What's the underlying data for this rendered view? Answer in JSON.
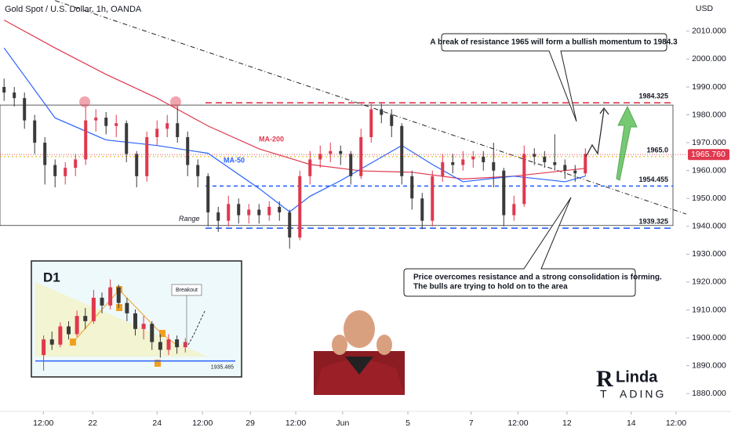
{
  "chart_data": [
    {
      "type": "candlestick",
      "title": "Gold Spot / U.S. Dollar, 1h, OANDA",
      "currency": "USD",
      "up_color": "#e0384e",
      "down_color": "#3a3a3a",
      "x": [
        0,
        1,
        2,
        3,
        4,
        5,
        6,
        7,
        8,
        9,
        10,
        11,
        12,
        13,
        14,
        15,
        16,
        17,
        18,
        19,
        20,
        21,
        22,
        23,
        24,
        25,
        26,
        27,
        28,
        29,
        30,
        31,
        32,
        33,
        34,
        35,
        36,
        37,
        38,
        39,
        40,
        41,
        42,
        43,
        44,
        45,
        46,
        47,
        48,
        49,
        50,
        51,
        52,
        53,
        54,
        55,
        56,
        57
      ],
      "open": [
        1990,
        1988,
        1986,
        1978,
        1970,
        1962,
        1958,
        1961,
        1964,
        1978,
        1979,
        1976,
        1977,
        1966,
        1958,
        1972,
        1975,
        1977,
        1972,
        1962,
        1958,
        1945,
        1942,
        1948,
        1944,
        1946,
        1944,
        1947,
        1945,
        1936,
        1958,
        1964,
        1966,
        1967,
        1966,
        1958,
        1972,
        1982,
        1980,
        1976,
        1958,
        1950,
        1942,
        1958,
        1963,
        1962,
        1964,
        1965,
        1963,
        1960,
        1944,
        1948,
        1966,
        1965,
        1963,
        1962,
        1960,
        1959
      ],
      "high": [
        1993,
        1990,
        1988,
        1980,
        1972,
        1964,
        1963,
        1966,
        1983,
        1982,
        1981,
        1980,
        1978,
        1967,
        1974,
        1978,
        1980,
        1983,
        1974,
        1964,
        1959,
        1947,
        1951,
        1950,
        1948,
        1948,
        1949,
        1949,
        1946,
        1960,
        1967,
        1969,
        1970,
        1969,
        1967,
        1975,
        1984,
        1984,
        1982,
        1977,
        1960,
        1952,
        1960,
        1966,
        1966,
        1967,
        1967,
        1967,
        1970,
        1961,
        1951,
        1969,
        1968,
        1967,
        1973,
        1964,
        1962,
        1968
      ],
      "low": [
        1985,
        1983,
        1975,
        1966,
        1955,
        1954,
        1955,
        1958,
        1962,
        1974,
        1973,
        1972,
        1963,
        1954,
        1956,
        1969,
        1972,
        1970,
        1958,
        1954,
        1940,
        1938,
        1940,
        1941,
        1941,
        1941,
        1942,
        1942,
        1932,
        1935,
        1955,
        1961,
        1963,
        1962,
        1955,
        1957,
        1970,
        1977,
        1972,
        1955,
        1946,
        1939,
        1940,
        1956,
        1959,
        1960,
        1961,
        1960,
        1954,
        1940,
        1942,
        1947,
        1962,
        1961,
        1960,
        1957,
        1956,
        1958
      ],
      "close": [
        1988,
        1986,
        1978,
        1970,
        1962,
        1958,
        1961,
        1964,
        1978,
        1979,
        1976,
        1977,
        1966,
        1958,
        1972,
        1975,
        1977,
        1972,
        1962,
        1958,
        1945,
        1942,
        1948,
        1944,
        1946,
        1944,
        1947,
        1945,
        1936,
        1958,
        1964,
        1966,
        1967,
        1966,
        1958,
        1972,
        1982,
        1980,
        1976,
        1958,
        1950,
        1942,
        1958,
        1963,
        1962,
        1964,
        1965,
        1963,
        1960,
        1944,
        1948,
        1966,
        1965,
        1963,
        1962,
        1960,
        1959,
        1966
      ],
      "series": [
        {
          "name": "MA-200",
          "color": "#e0384e",
          "x": [
            0,
            5,
            10,
            15,
            20,
            25,
            30,
            35,
            40,
            45,
            50,
            55,
            57
          ],
          "values": [
            2014,
            2004,
            1994.5,
            1986,
            1976,
            1967.8,
            1962.2,
            1959.9,
            1959.4,
            1957,
            1958,
            1960,
            1960.8
          ]
        },
        {
          "name": "MA-50",
          "color": "#2962ff",
          "x": [
            0,
            5,
            10,
            15,
            20,
            25,
            28,
            30,
            33,
            37,
            39,
            42,
            45,
            50,
            55,
            57
          ],
          "values": [
            2004,
            1978.9,
            1971,
            1969,
            1966.2,
            1953.6,
            1945.2,
            1950.8,
            1956.4,
            1964.8,
            1969,
            1962.2,
            1956,
            1958,
            1956,
            1958
          ]
        }
      ],
      "levels": [
        {
          "value": 1984.325,
          "label": "1984.325",
          "color": "#e0384e",
          "dash": "8 5"
        },
        {
          "value": 1965,
          "label": "1965.0",
          "color": "#e0b000",
          "dash": "2 3"
        },
        {
          "value": 1954.455,
          "label": "1954.455",
          "color": "#2962ff",
          "dash": "5 4"
        },
        {
          "value": 1939.325,
          "label": "1939.325",
          "color": "#2962ff",
          "dash": "8 5"
        }
      ],
      "range": {
        "label": "Range",
        "top": 1983.5,
        "bottom": 1940.3
      },
      "trendline": {
        "x": [
          5,
          66.9
        ],
        "values": [
          2021,
          1944.4
        ]
      },
      "last_price": {
        "value": 1965.76,
        "label": "1965.760",
        "color": "#e0384e"
      },
      "xlim": [
        -0.4,
        66.9
      ],
      "ylim": [
        1873.6,
        2021.2
      ],
      "xticks": [
        {
          "value": 3.85,
          "label": "12:00"
        },
        {
          "value": 8.69,
          "label": "22"
        },
        {
          "value": 15,
          "label": "24"
        },
        {
          "value": 19.46,
          "label": "12:00"
        },
        {
          "value": 24.15,
          "label": "29"
        },
        {
          "value": 28.6,
          "label": "12:00"
        },
        {
          "value": 33.2,
          "label": "Jun"
        },
        {
          "value": 39.6,
          "label": "5"
        },
        {
          "value": 45.8,
          "label": "7"
        },
        {
          "value": 50.4,
          "label": "12:00"
        },
        {
          "value": 55.2,
          "label": "12"
        },
        {
          "value": 61.5,
          "label": "14"
        },
        {
          "value": 65.9,
          "label": "12:00"
        }
      ],
      "yticks": [
        {
          "value": 1880,
          "label": "1880.000"
        },
        {
          "value": 1890,
          "label": "1890.000"
        },
        {
          "value": 1900,
          "label": "1900.000"
        },
        {
          "value": 1910,
          "label": "1910.000"
        },
        {
          "value": 1920,
          "label": "1920.000"
        },
        {
          "value": 1930,
          "label": "1930.000"
        },
        {
          "value": 1940,
          "label": "1940.000"
        },
        {
          "value": 1950,
          "label": "1950.000"
        },
        {
          "value": 1960,
          "label": "1960.000"
        },
        {
          "value": 1970,
          "label": "1970.000"
        },
        {
          "value": 1980,
          "label": "1980.000"
        },
        {
          "value": 1990,
          "label": "1990.000"
        },
        {
          "value": 2000,
          "label": "2000.000"
        },
        {
          "value": 2010,
          "label": "2010.000"
        }
      ],
      "annotations": [
        "A break of resistance 1965 will form a bullish momentum to 1984.3",
        "Price overcomes resistance and a strong consolidation is forming.",
        "The bulls are trying to hold on to the area"
      ]
    },
    {
      "type": "candlestick",
      "title": "D1",
      "up_color": "#e0384e",
      "down_color": "#3a3a3a",
      "x": [
        0,
        1,
        2,
        3,
        4,
        5,
        6,
        7,
        8,
        9,
        10,
        11,
        12,
        13,
        14,
        15,
        16,
        17
      ],
      "open": [
        1940,
        1952,
        1948,
        1962,
        1956,
        1970,
        1966,
        1984,
        1978,
        1992,
        1980,
        1972,
        1960,
        1964,
        1950,
        1944,
        1952,
        1946
      ],
      "high": [
        1955,
        1958,
        1965,
        1966,
        1974,
        1976,
        1990,
        1988,
        1998,
        1994,
        1984,
        1975,
        1970,
        1966,
        1956,
        1956,
        1955,
        1953
      ],
      "low": [
        1928,
        1944,
        1946,
        1952,
        1954,
        1960,
        1964,
        1972,
        1975,
        1976,
        1966,
        1955,
        1952,
        1944,
        1938,
        1940,
        1941,
        1942
      ],
      "close": [
        1952,
        1948,
        1962,
        1956,
        1970,
        1966,
        1984,
        1978,
        1992,
        1980,
        1972,
        1960,
        1964,
        1950,
        1944,
        1952,
        1946,
        1950
      ],
      "level": {
        "value": 1935.465,
        "label": "1935.465",
        "color": "#2962ff"
      },
      "annotation": "Breakout",
      "xlim": [
        -1,
        23
      ],
      "ylim": [
        1925,
        2005
      ]
    }
  ],
  "brand": {
    "mark": "R",
    "top": "Linda",
    "bottom_left": "T",
    "bottom_right": "ADING"
  }
}
